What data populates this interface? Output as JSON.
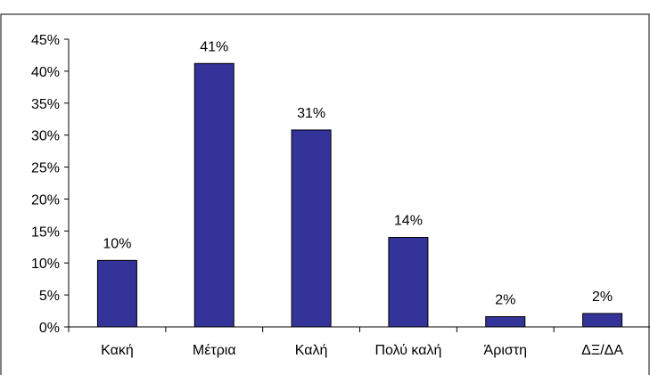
{
  "chart_data": {
    "type": "bar",
    "title": "",
    "xlabel": "",
    "ylabel": "",
    "categories": [
      "Κακή",
      "Μέτρια",
      "Καλή",
      "Πολύ καλή",
      "Άριστη",
      "ΔΞ/ΔΑ"
    ],
    "values": [
      10.4,
      41.2,
      30.8,
      14.0,
      1.6,
      2.1
    ],
    "data_labels": [
      "10%",
      "41%",
      "31%",
      "14%",
      "2%",
      "2%"
    ],
    "yticks": [
      0,
      5,
      10,
      15,
      20,
      25,
      30,
      35,
      40,
      45
    ],
    "ytick_labels": [
      "0%",
      "5%",
      "10%",
      "15%",
      "20%",
      "25%",
      "30%",
      "35%",
      "40%",
      "45%"
    ],
    "ylim": [
      0,
      45
    ],
    "grid": false,
    "legend": "none",
    "colors": {
      "bar": "#333399",
      "bar_stroke": "#000000",
      "axis": "#000000"
    }
  }
}
